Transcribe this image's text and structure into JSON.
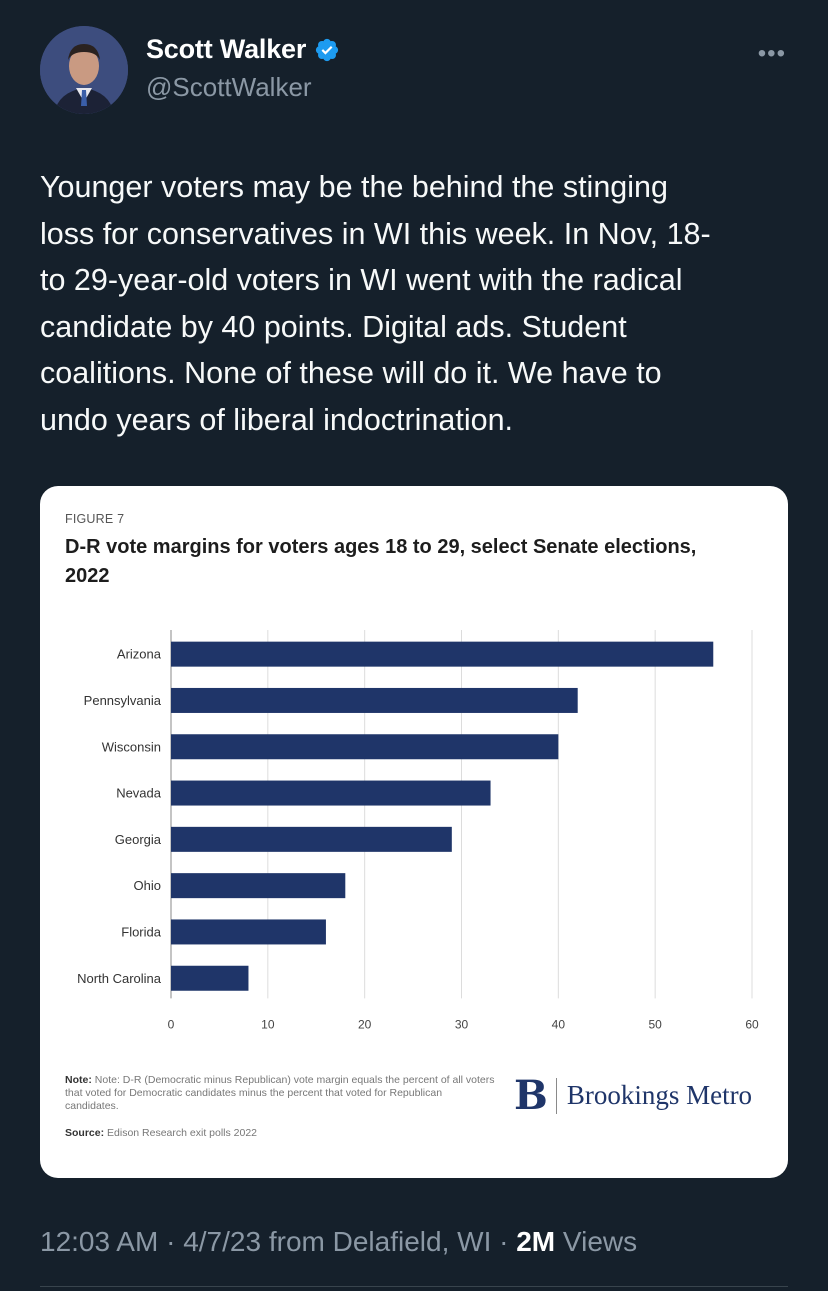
{
  "author": {
    "display_name": "Scott Walker",
    "handle": "@ScottWalker"
  },
  "tweet": {
    "text": "Younger voters may be the behind the stinging\nloss for conservatives in WI this week. In Nov, 18-\nto 29-year-old voters in WI went with the radical\ncandidate by 40 points. Digital ads. Student\ncoalitions. None of these will do it. We have to\nundo years of liberal indoctrination."
  },
  "card": {
    "figure_label": "FIGURE 7",
    "title": "D-R vote margins for voters ages 18 to 29, select Senate elections, 2022",
    "note_label": "Note:",
    "note_text": "Note: D-R (Democratic minus Republican) vote margin equals the percent of all voters that voted for Democratic candidates minus the percent that voted for Republican candidates.",
    "source_label": "Source:",
    "source_text": "Edison Research exit polls 2022",
    "logo_letter": "B",
    "logo_text": "Brookings Metro"
  },
  "chart_data": {
    "type": "bar",
    "orientation": "horizontal",
    "title": "D-R vote margins for voters ages 18 to 29, select Senate elections, 2022",
    "categories": [
      "Arizona",
      "Pennsylvania",
      "Wisconsin",
      "Nevada",
      "Georgia",
      "Ohio",
      "Florida",
      "North Carolina"
    ],
    "values": [
      56,
      42,
      40,
      33,
      29,
      18,
      16,
      8
    ],
    "xlim": [
      0,
      60
    ],
    "xticks": [
      "0",
      "10",
      "20",
      "30",
      "40",
      "50",
      "60"
    ],
    "grid": true,
    "bar_color": "#1f3569",
    "grid_color": "#dcdcdc"
  },
  "meta": {
    "time": "12:03 AM",
    "date": "4/7/23",
    "location_prefix": "from",
    "location": "Delafield, WI",
    "separator": "·",
    "views_count": "2M",
    "views_label": "Views"
  },
  "colors": {
    "background": "#15202b",
    "secondary_text": "#8b98a5",
    "verified_badge": "#1d9bf0"
  }
}
